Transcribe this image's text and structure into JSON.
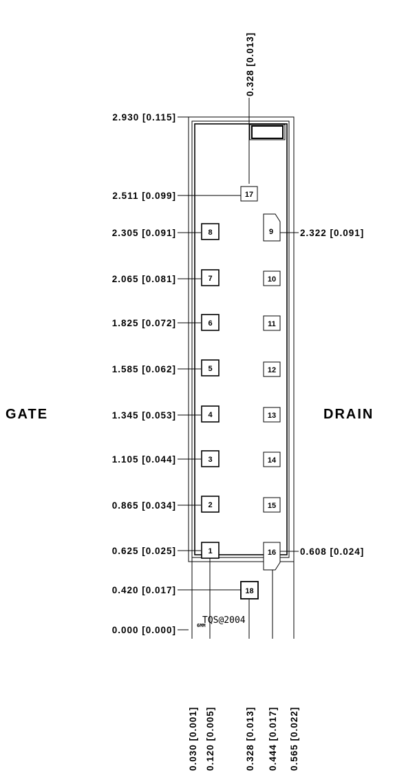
{
  "terminals": {
    "gate": "GATE",
    "drain": "DRAIN"
  },
  "die_marking": "TQS@2004",
  "die_sub_marking": "6MM",
  "left_dims": [
    "2.930 [0.115]",
    "2.511 [0.099]",
    "2.305 [0.091]",
    "2.065 [0.081]",
    "1.825 [0.072]",
    "1.585 [0.062]",
    "1.345 [0.053]",
    "1.105 [0.044]",
    "0.865 [0.034]",
    "0.625 [0.025]",
    "0.420 [0.017]",
    "0.000 [0.000]"
  ],
  "right_dims": [
    "2.322 [0.091]",
    "0.608 [0.024]"
  ],
  "top_dim": "0.328 [0.013]",
  "bottom_dims": [
    "0.030 [0.001]",
    "0.120 [0.005]",
    "0.328 [0.013]",
    "0.444 [0.017]",
    "0.565 [0.022]"
  ],
  "pads": [
    "1",
    "2",
    "3",
    "4",
    "5",
    "6",
    "7",
    "8",
    "9",
    "10",
    "11",
    "12",
    "13",
    "14",
    "15",
    "16",
    "17",
    "18"
  ]
}
